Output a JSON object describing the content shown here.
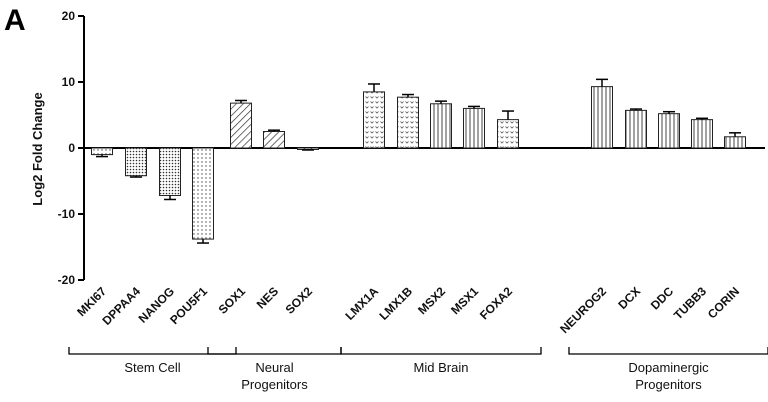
{
  "panel_label": "A",
  "chart_data": {
    "type": "bar",
    "ylabel": "Log2 Fold Change",
    "ylim": [
      -20,
      20
    ],
    "yticks": [
      20,
      10,
      0,
      -10,
      -20
    ],
    "grid": false,
    "categories": [
      "MKI67",
      "DPPAA4",
      "NANOG",
      "POU5F1",
      "SOX1",
      "NES",
      "SOX2",
      "LMX1A",
      "LMX1B",
      "MSX2",
      "MSX1",
      "FOXA2",
      "NEUROG2",
      "DCX",
      "DDC",
      "TUBB3",
      "CORIN"
    ],
    "values": [
      -1.0,
      -4.2,
      -7.2,
      -13.8,
      6.8,
      2.5,
      -0.2,
      8.5,
      7.7,
      6.7,
      6.0,
      4.3,
      9.3,
      5.7,
      5.2,
      4.3,
      1.7
    ],
    "errors": [
      0.3,
      0.2,
      0.6,
      0.6,
      0.4,
      0.2,
      0.1,
      1.2,
      0.4,
      0.4,
      0.3,
      1.3,
      1.1,
      0.2,
      0.3,
      0.2,
      0.6
    ],
    "groups": [
      {
        "label": "Stem Cell",
        "start": 0,
        "end": 3
      },
      {
        "label": "Neural\nProgenitors",
        "start": 4,
        "end": 6
      },
      {
        "label": "Mid Brain",
        "start": 7,
        "end": 11
      },
      {
        "label": "Dopaminergic\nProgenitors",
        "start": 12,
        "end": 16
      }
    ],
    "patterns": [
      "fine-dots",
      "dense-dots",
      "dense-dots",
      "fine-dots",
      "diagonal",
      "diagonal",
      "diagonal",
      "checker",
      "checker",
      "vertical",
      "vertical",
      "checker",
      "vertical",
      "vertical",
      "vertical",
      "vertical",
      "vertical"
    ]
  }
}
